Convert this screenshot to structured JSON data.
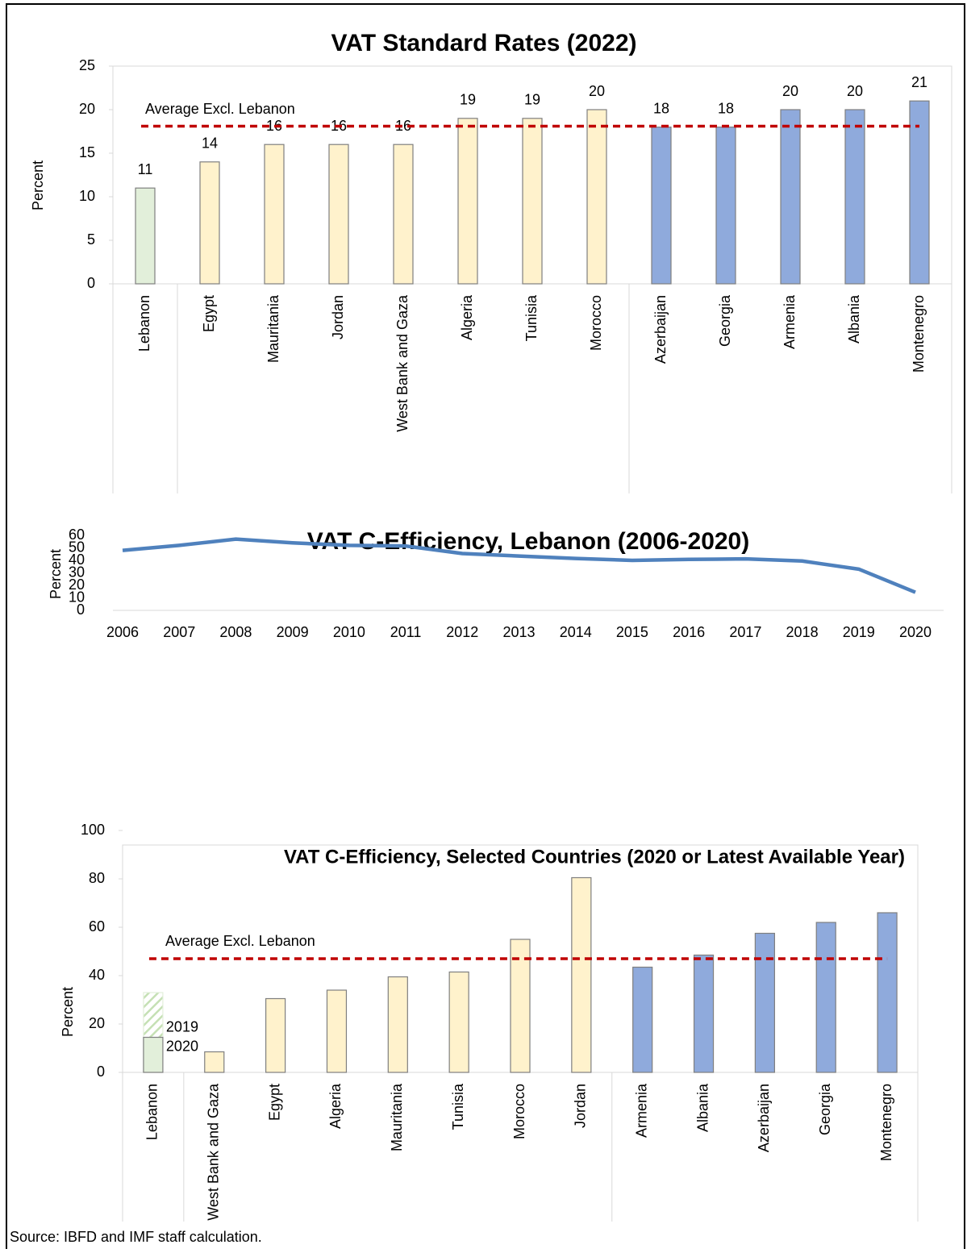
{
  "chart_data": [
    {
      "type": "bar",
      "title": "VAT Standard Rates (2022)",
      "y_label": "Percent",
      "categories": [
        "Lebanon",
        "Egypt",
        "Mauritania",
        "Jordan",
        "West Bank and Gaza",
        "Algeria",
        "Tunisia",
        "Morocco",
        "Azerbaijan",
        "Georgia",
        "Armenia",
        "Albania",
        "Montenegro"
      ],
      "values": [
        11,
        14,
        16,
        16,
        16,
        19,
        19,
        20,
        18,
        18,
        20,
        20,
        21
      ],
      "colors": [
        "#e2efda",
        "#fff2cc",
        "#fff2cc",
        "#fff2cc",
        "#fff2cc",
        "#fff2cc",
        "#fff2cc",
        "#fff2cc",
        "#8faadc",
        "#8faadc",
        "#8faadc",
        "#8faadc",
        "#8faadc"
      ],
      "data_labels": true,
      "average_line": {
        "label": "Average Excl. Lebanon",
        "value": 18.1,
        "color": "#c00000"
      },
      "ylim": [
        0,
        25
      ],
      "yticks": [
        0,
        5,
        10,
        15,
        20,
        25
      ]
    },
    {
      "type": "line",
      "title": "VAT C-Efficiency, Lebanon (2006-2020)",
      "y_label": "Percent",
      "x": [
        2006,
        2007,
        2008,
        2009,
        2010,
        2011,
        2012,
        2013,
        2014,
        2015,
        2016,
        2017,
        2018,
        2019,
        2020
      ],
      "values": [
        48,
        52,
        57,
        54,
        52,
        51.5,
        45.5,
        43.5,
        41.5,
        40,
        40.8,
        41.2,
        39.5,
        33,
        14.5
      ],
      "color": "#4f81bd",
      "xlim": [
        2006,
        2020
      ],
      "ylim": [
        0,
        60
      ],
      "yticks": [
        0,
        10,
        20,
        30,
        40,
        50,
        60
      ]
    },
    {
      "type": "bar",
      "title": "VAT C-Efficiency, Selected Countries (2020 or Latest Available Year)",
      "y_label": "Percent",
      "categories": [
        "Lebanon",
        "West Bank and Gaza",
        "Egypt",
        "Algeria",
        "Mauritania",
        "Tunisia",
        "Morocco",
        "Jordan",
        "Armenia",
        "Albania",
        "Azerbaijan",
        "Georgia",
        "Montenegro"
      ],
      "series": [
        {
          "name": "2020",
          "values": [
            14.5,
            8.5,
            30.5,
            34,
            39.5,
            41.5,
            55,
            80.5,
            43.5,
            48.5,
            57.5,
            62,
            66
          ],
          "colors": [
            "#e2efda",
            "#fff2cc",
            "#fff2cc",
            "#fff2cc",
            "#fff2cc",
            "#fff2cc",
            "#fff2cc",
            "#fff2cc",
            "#8faadc",
            "#8faadc",
            "#8faadc",
            "#8faadc",
            "#8faadc"
          ]
        },
        {
          "name": "2019",
          "values": [
            33,
            null,
            null,
            null,
            null,
            null,
            null,
            null,
            null,
            null,
            null,
            null,
            null
          ],
          "color": "#a9d18e",
          "hatched": true
        }
      ],
      "average_line": {
        "label": "Average Excl. Lebanon",
        "value": 47,
        "color": "#c00000"
      },
      "ylim": [
        0,
        100
      ],
      "yticks": [
        0,
        20,
        40,
        60,
        80,
        100
      ]
    }
  ],
  "source": "Source: IBFD and IMF staff calculation."
}
